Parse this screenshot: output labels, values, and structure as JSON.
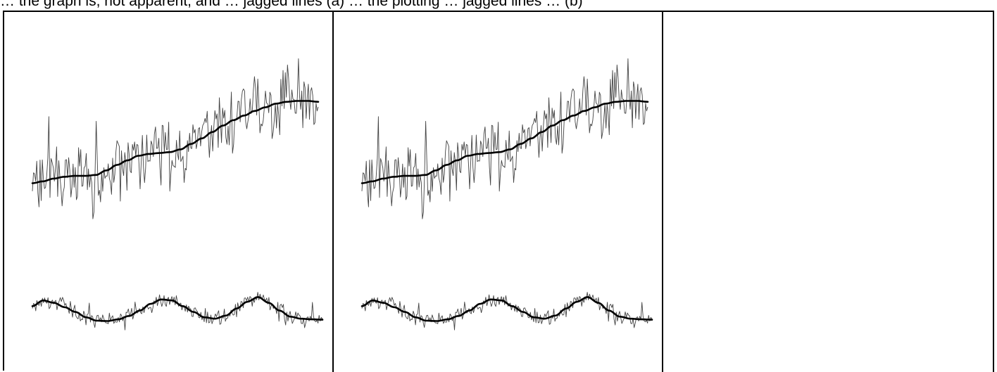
{
  "caption": {
    "text": "… the graph is, not apparent, and … jagged lines (a) … the plotting … jagged lines … (b)"
  },
  "colors": {
    "background": "#ffffff",
    "line": "#000000",
    "noise": "#222222",
    "border": "#000000"
  },
  "chart_data": [
    {
      "type": "line",
      "panel": "left",
      "series": [
        {
          "values": [
            0.05,
            0.07,
            0.1,
            0.12,
            0.13,
            0.13,
            0.14,
            0.19,
            0.25,
            0.3,
            0.35,
            0.37,
            0.38,
            0.39,
            0.42,
            0.48,
            0.54,
            0.61,
            0.68,
            0.74,
            0.79,
            0.84,
            0.88,
            0.92,
            0.94,
            0.95,
            0.95,
            0.94
          ]
        },
        {
          "values": [
            0.45,
            0.62,
            0.55,
            0.42,
            0.28,
            0.12,
            0.02,
            0.01,
            0.06,
            0.16,
            0.32,
            0.52,
            0.65,
            0.62,
            0.45,
            0.28,
            0.12,
            0.08,
            0.17,
            0.38,
            0.58,
            0.72,
            0.55,
            0.32,
            0.14,
            0.08,
            0.06,
            0.05
          ]
        }
      ]
    },
    {
      "type": "line",
      "panel": "middle",
      "series": [
        {
          "values": [
            0.05,
            0.07,
            0.1,
            0.12,
            0.13,
            0.13,
            0.14,
            0.19,
            0.25,
            0.3,
            0.35,
            0.37,
            0.38,
            0.39,
            0.42,
            0.48,
            0.54,
            0.61,
            0.68,
            0.74,
            0.79,
            0.84,
            0.88,
            0.92,
            0.94,
            0.95,
            0.95,
            0.94
          ]
        },
        {
          "values": [
            0.45,
            0.62,
            0.55,
            0.42,
            0.28,
            0.12,
            0.02,
            0.01,
            0.06,
            0.16,
            0.32,
            0.52,
            0.65,
            0.62,
            0.45,
            0.28,
            0.12,
            0.08,
            0.17,
            0.38,
            0.58,
            0.72,
            0.55,
            0.32,
            0.14,
            0.08,
            0.06,
            0.05
          ]
        }
      ]
    },
    {
      "type": "line",
      "panel": "right",
      "series": []
    }
  ]
}
